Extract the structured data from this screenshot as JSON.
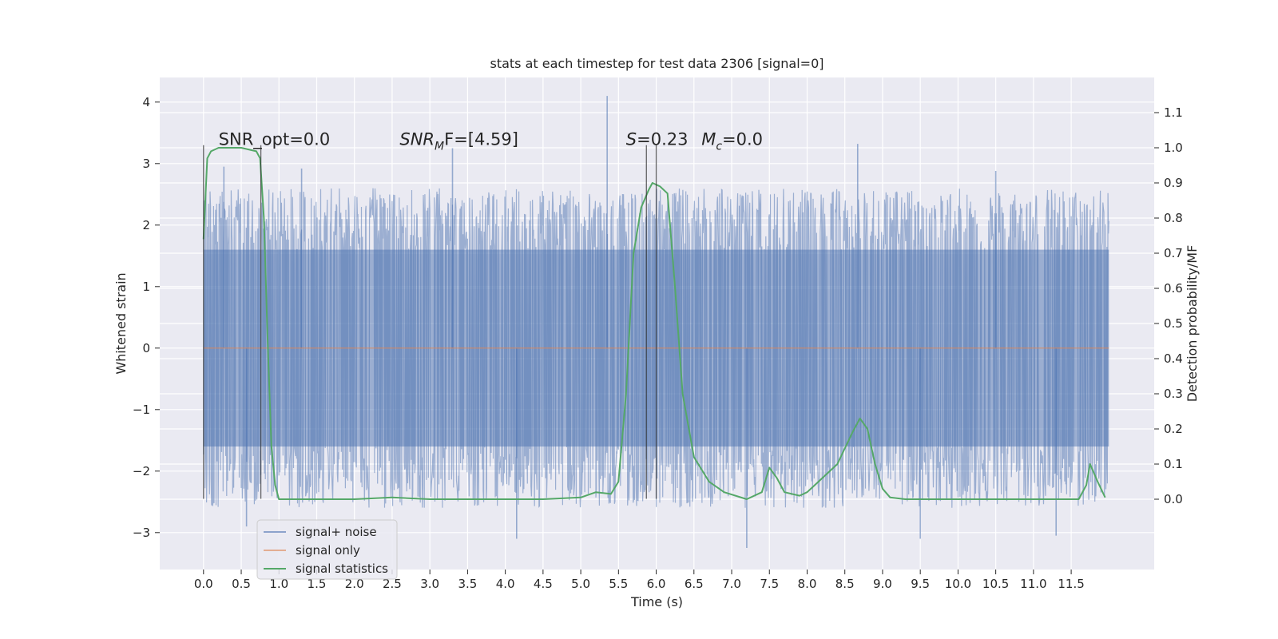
{
  "chart_data": {
    "type": "line",
    "title": "stats at each timestep for test data 2306 [signal=0]",
    "xlabel": "Time (s)",
    "ylabel": "Whitened strain",
    "ylabel_right": "Detection probability/MF",
    "xlim": [
      -0.58,
      12.6
    ],
    "ylim": [
      -3.6,
      4.4
    ],
    "ylim_right": [
      -0.2,
      1.2
    ],
    "x_ticks": [
      0.0,
      0.5,
      1.0,
      1.5,
      2.0,
      2.5,
      3.0,
      3.5,
      4.0,
      4.5,
      5.0,
      5.5,
      6.0,
      6.5,
      7.0,
      7.5,
      8.0,
      8.5,
      9.0,
      9.5,
      10.0,
      10.5,
      11.0,
      11.5
    ],
    "x_tick_labels": [
      "0.0",
      "0.5",
      "1.0",
      "1.5",
      "2.0",
      "2.5",
      "3.0",
      "3.5",
      "4.0",
      "4.5",
      "5.0",
      "5.5",
      "6.0",
      "6.5",
      "7.0",
      "7.5",
      "8.0",
      "8.5",
      "9.0",
      "9.5",
      "10.0",
      "10.5",
      "11.0",
      "11.5"
    ],
    "y_ticks": [
      4,
      3,
      2,
      1,
      0,
      -1,
      -2,
      -3
    ],
    "y_tick_labels": [
      "4",
      "3",
      "2",
      "1",
      "0",
      "−1",
      "−2",
      "−3"
    ],
    "y_right_ticks": [
      1.1,
      1.0,
      0.9,
      0.8,
      0.7,
      0.6,
      0.5,
      0.4,
      0.3,
      0.2,
      0.1,
      0.0
    ],
    "y_right_tick_labels": [
      "1.1",
      "1.0",
      "0.9",
      "0.8",
      "0.7",
      "0.6",
      "0.5",
      "0.4",
      "0.3",
      "0.2",
      "0.1",
      "0.0"
    ],
    "grid": true,
    "legend": {
      "placement": "lower-left",
      "entries": [
        {
          "label": "signal+ noise",
          "color": "#4c72b0"
        },
        {
          "label": "signal only",
          "color": "#dd8452"
        },
        {
          "label": "signal statistics",
          "color": "#55a868"
        }
      ]
    },
    "annotations": [
      {
        "x": 0.2,
        "y": 3.3,
        "text": "SNR_opt=0.0",
        "italic": false
      },
      {
        "x": 2.6,
        "y": 3.3,
        "text": "SNR",
        "sub": "M",
        "rest": "F=[4.59]",
        "italic": true
      },
      {
        "x": 5.6,
        "y": 3.3,
        "text": "S",
        "rest": "=0.23",
        "italic": true
      },
      {
        "x": 6.6,
        "y": 3.3,
        "text": "M",
        "sub": "c",
        "rest": "=0.0",
        "italic": true
      }
    ],
    "vertical_markers": [
      {
        "x": 0.0,
        "y_range": [
          -2.45,
          3.3
        ]
      },
      {
        "x": 0.76,
        "y_range": [
          -2.45,
          3.3
        ]
      },
      {
        "x": 5.87,
        "y_range": [
          -2.45,
          3.3
        ]
      },
      {
        "x": 6.0,
        "y_range": [
          -2.45,
          3.3
        ]
      }
    ],
    "series": [
      {
        "name": "signal+ noise",
        "color": "#4c72b0",
        "x_range": [
          0.0,
          12.0
        ],
        "envelope_typical": [
          -1.6,
          1.6
        ],
        "peaks_upper": [
          [
            0.27,
            2.95
          ],
          [
            1.3,
            2.92
          ],
          [
            3.3,
            3.25
          ],
          [
            5.35,
            4.1
          ],
          [
            8.67,
            3.32
          ],
          [
            10.5,
            2.88
          ]
        ],
        "peaks_lower": [
          [
            0.57,
            -2.9
          ],
          [
            4.15,
            -3.1
          ],
          [
            7.2,
            -3.25
          ],
          [
            9.5,
            -3.1
          ],
          [
            11.3,
            -3.05
          ]
        ]
      },
      {
        "name": "signal only",
        "color": "#dd8452",
        "x": [
          0.0,
          12.0
        ],
        "y": [
          0.0,
          0.0
        ]
      },
      {
        "name": "signal statistics",
        "color": "#55a868",
        "axis": "right",
        "x": [
          0.0,
          0.05,
          0.1,
          0.2,
          0.3,
          0.5,
          0.7,
          0.75,
          0.8,
          0.85,
          0.9,
          0.95,
          1.0,
          1.5,
          2.0,
          2.5,
          3.0,
          3.5,
          4.0,
          4.5,
          5.0,
          5.2,
          5.4,
          5.5,
          5.6,
          5.7,
          5.8,
          5.9,
          5.95,
          6.05,
          6.15,
          6.25,
          6.35,
          6.5,
          6.7,
          6.9,
          7.2,
          7.4,
          7.5,
          7.6,
          7.7,
          7.9,
          8.0,
          8.2,
          8.4,
          8.6,
          8.7,
          8.8,
          8.9,
          9.0,
          9.1,
          9.3,
          10.0,
          11.0,
          11.6,
          11.7,
          11.75,
          11.85,
          11.95
        ],
        "y": [
          0.74,
          0.97,
          0.99,
          1.0,
          1.0,
          1.0,
          0.99,
          0.97,
          0.8,
          0.45,
          0.15,
          0.04,
          0.0,
          0.0,
          0.0,
          0.005,
          0.0,
          0.0,
          0.0,
          0.0,
          0.005,
          0.02,
          0.015,
          0.05,
          0.3,
          0.7,
          0.83,
          0.88,
          0.9,
          0.89,
          0.87,
          0.6,
          0.3,
          0.12,
          0.05,
          0.02,
          0.0,
          0.02,
          0.09,
          0.06,
          0.02,
          0.01,
          0.02,
          0.06,
          0.1,
          0.19,
          0.23,
          0.2,
          0.1,
          0.03,
          0.005,
          0.0,
          0.0,
          0.0,
          0.0,
          0.04,
          0.1,
          0.05,
          0.005
        ]
      }
    ]
  }
}
